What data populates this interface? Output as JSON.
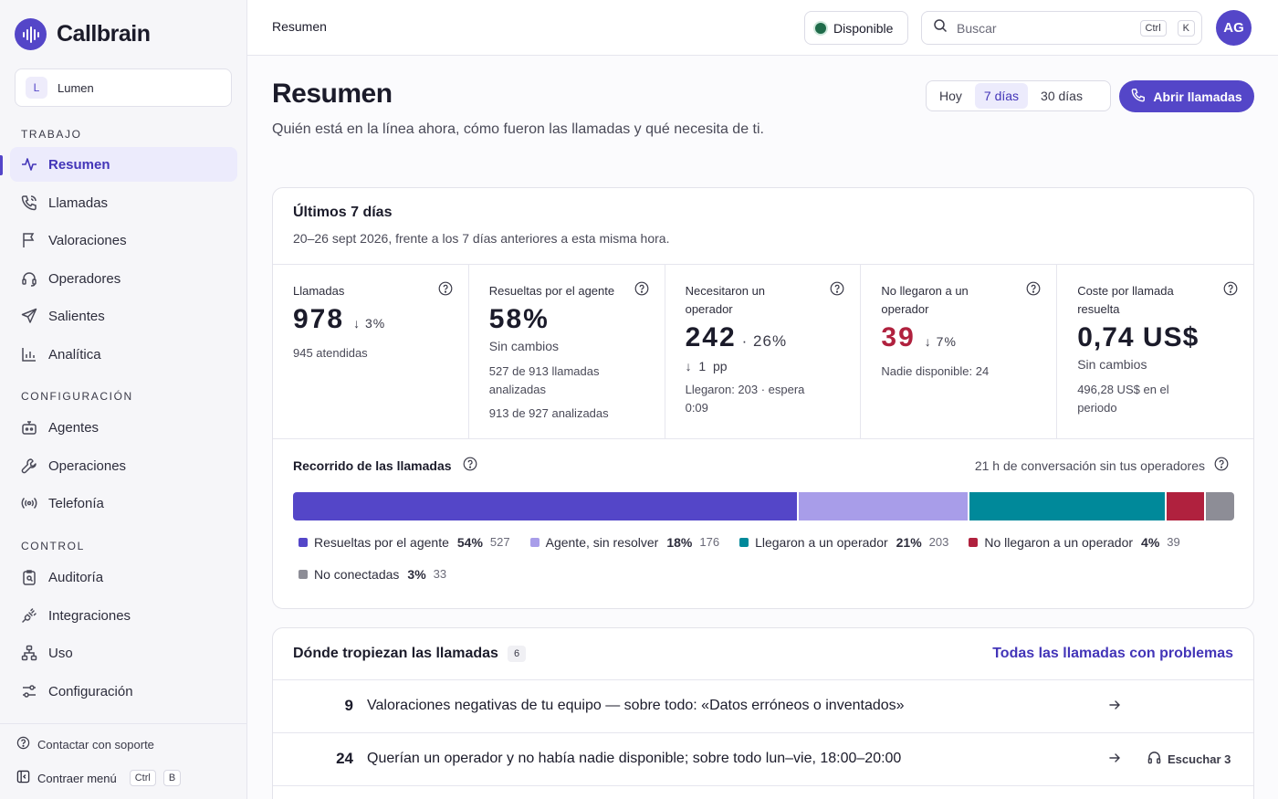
{
  "app": {
    "name": "Callbrain"
  },
  "workspace": {
    "initial": "L",
    "name": "Lumen"
  },
  "sidebar": {
    "sections": [
      {
        "label": "TRABAJO",
        "items": [
          {
            "label": "Resumen",
            "icon": "activity-icon",
            "active": true
          },
          {
            "label": "Llamadas",
            "icon": "phone-icon"
          },
          {
            "label": "Valoraciones",
            "icon": "flag-icon"
          },
          {
            "label": "Operadores",
            "icon": "headset-icon"
          },
          {
            "label": "Salientes",
            "icon": "send-icon"
          },
          {
            "label": "Analítica",
            "icon": "bar-chart-icon"
          }
        ]
      },
      {
        "label": "CONFIGURACIÓN",
        "items": [
          {
            "label": "Agentes",
            "icon": "bot-icon"
          },
          {
            "label": "Operaciones",
            "icon": "wrench-icon"
          },
          {
            "label": "Telefonía",
            "icon": "radio-icon"
          }
        ]
      },
      {
        "label": "CONTROL",
        "items": [
          {
            "label": "Auditoría",
            "icon": "audit-icon"
          },
          {
            "label": "Integraciones",
            "icon": "plug-icon"
          },
          {
            "label": "Uso",
            "icon": "network-icon"
          },
          {
            "label": "Configuración",
            "icon": "sliders-icon"
          }
        ]
      }
    ],
    "support": "Contactar con soporte",
    "collapse": "Contraer menú",
    "collapse_keys": [
      "Ctrl",
      "B"
    ]
  },
  "topbar": {
    "breadcrumb": "Resumen",
    "status": "Disponible",
    "search_placeholder": "Buscar",
    "search_keys": [
      "Ctrl",
      "K"
    ],
    "avatar": "AG"
  },
  "page": {
    "title": "Resumen",
    "subtitle": "Quién está en la línea ahora, cómo fueron las llamadas y qué necesita de ti.",
    "ranges": [
      "Hoy",
      "7 días",
      "30 días"
    ],
    "selected_range": "7 días",
    "open_button": "Abrir llamadas"
  },
  "summary": {
    "title": "Últimos 7 días",
    "subtitle": "20–26 sept 2026, frente a los 7 días anteriores a esta misma hora.",
    "metrics": [
      {
        "label": "Llamadas",
        "value": "978",
        "delta": "3%",
        "note": "945 atendidas"
      },
      {
        "label": "Resueltas por el agente",
        "value": "58%",
        "status": "Sin cambios",
        "note": "527 de 913 llamadas analizadas",
        "note2": "913 de 927 analizadas"
      },
      {
        "label": "Necesitaron un operador",
        "value": "242",
        "value_pct": "· 26%",
        "pp": "1",
        "pp_unit": "pp",
        "note": "Llegaron: 203 · espera 0:09"
      },
      {
        "label": "No llegaron a un operador",
        "value": "39",
        "delta": "7%",
        "note": "Nadie disponible: 24"
      },
      {
        "label": "Coste por llamada resuelta",
        "value": "0,74 US$",
        "status": "Sin cambios",
        "note": "496,28 US$ en el periodo"
      }
    ],
    "journey": {
      "title": "Recorrido de las llamadas",
      "right": "21 h de conversación sin tus operadores",
      "segments": [
        {
          "label": "Resueltas por el agente",
          "pct_label": "54%",
          "pct": 54,
          "count": "527",
          "color": "#5446c8"
        },
        {
          "label": "Agente, sin resolver",
          "pct_label": "18%",
          "pct": 18,
          "count": "176",
          "color": "#a89de9"
        },
        {
          "label": "Llegaron a un operador",
          "pct_label": "21%",
          "pct": 21,
          "count": "203",
          "color": "#00899a"
        },
        {
          "label": "No llegaron a un operador",
          "pct_label": "4%",
          "pct": 4,
          "count": "39",
          "color": "#b0213e"
        },
        {
          "label": "No conectadas",
          "pct_label": "3%",
          "pct": 3,
          "count": "33",
          "color": "#8d8d96"
        }
      ]
    }
  },
  "issues": {
    "title": "Dónde tropiezan las llamadas",
    "count": "6",
    "link": "Todas las llamadas con problemas",
    "rows": [
      {
        "num": "9",
        "text": "Valoraciones negativas de tu equipo — sobre todo: «Datos erróneos o inventados»"
      },
      {
        "num": "24",
        "text": "Querían un operador y no había nadie disponible; sobre todo lun–vie, 18:00–20:00",
        "action": "Escuchar 3"
      }
    ]
  }
}
